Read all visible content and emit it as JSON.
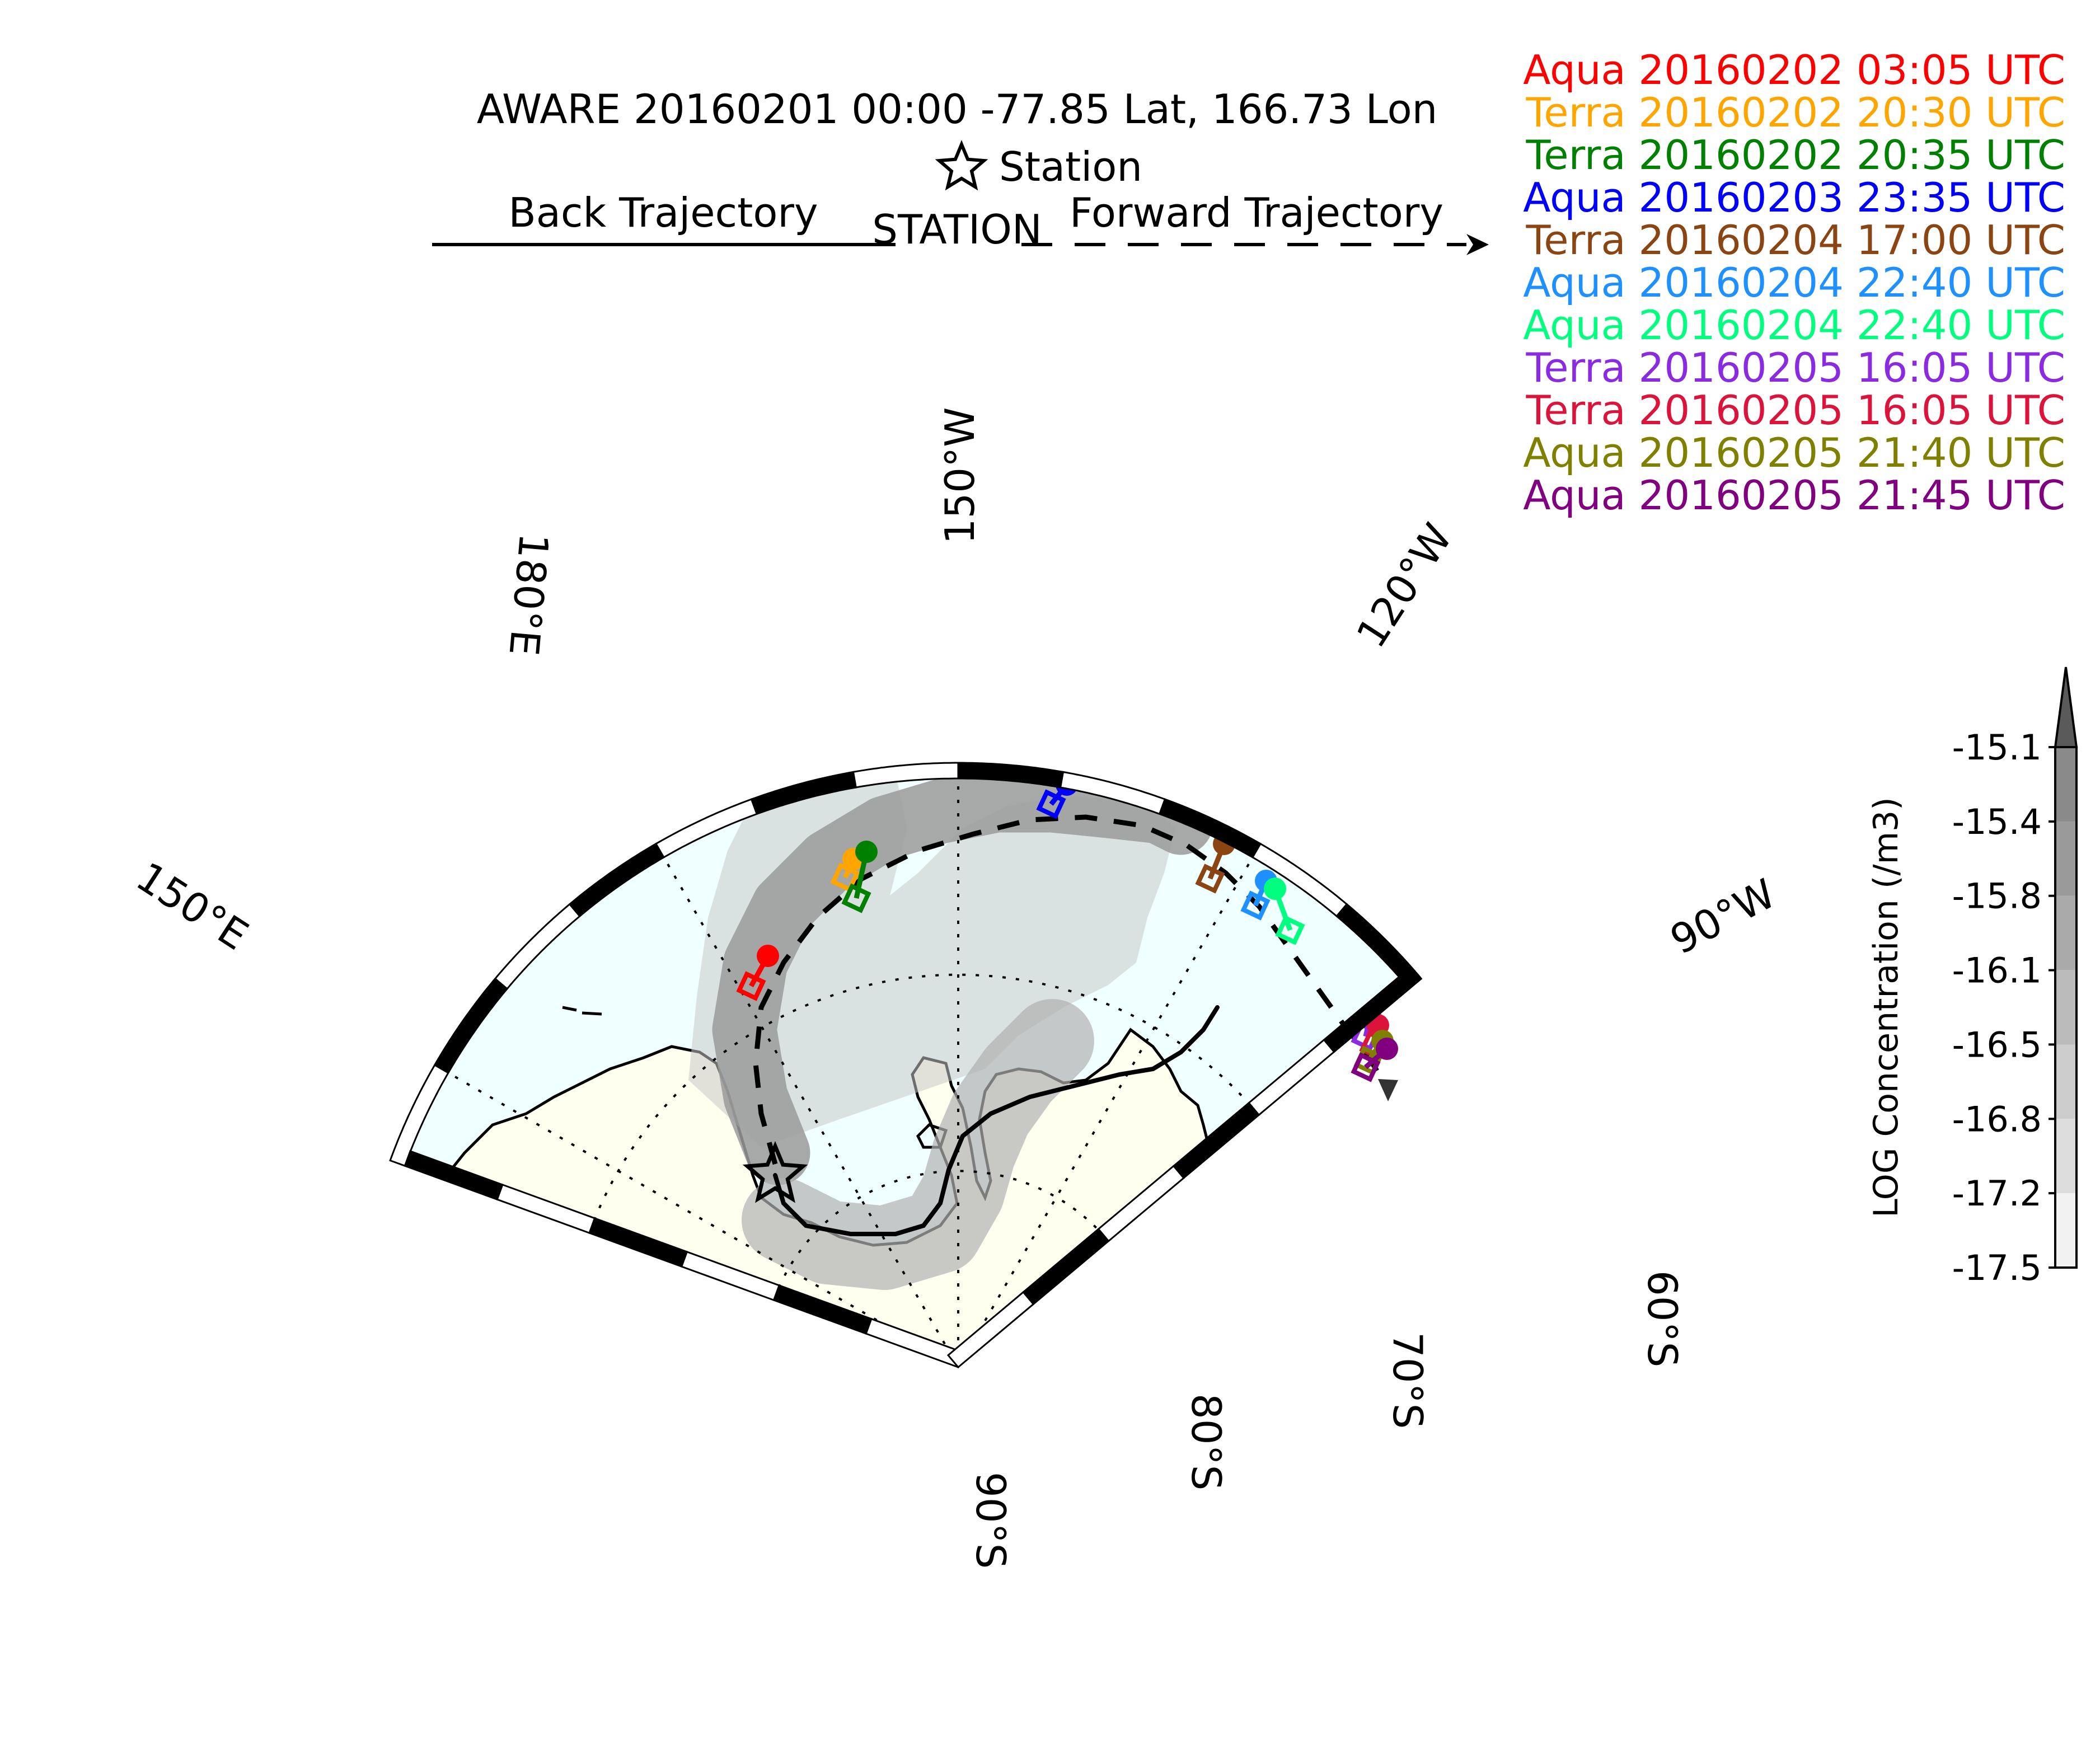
{
  "header": {
    "title": "AWARE 20160201 00:00  -77.85 Lat,  166.73 Lon",
    "station_legend": "Station",
    "back_label": "Back Trajectory",
    "station_label": "STATION",
    "forward_label": "Forward Trajectory"
  },
  "overpasses": [
    {
      "label": "Aqua 20160202 03:05 UTC",
      "color": "#ff0000"
    },
    {
      "label": "Terra 20160202 20:30 UTC",
      "color": "#ffa500"
    },
    {
      "label": "Terra 20160202 20:35 UTC",
      "color": "#008000"
    },
    {
      "label": "Aqua 20160203 23:35 UTC",
      "color": "#0000ff"
    },
    {
      "label": "Terra 20160204 17:00 UTC",
      "color": "#8b4513"
    },
    {
      "label": "Aqua 20160204 22:40 UTC",
      "color": "#1e90ff"
    },
    {
      "label": "Aqua 20160204 22:40 UTC",
      "color": "#00ff7f"
    },
    {
      "label": "Terra 20160205 16:05 UTC",
      "color": "#8a2be2"
    },
    {
      "label": "Terra 20160205 16:05 UTC",
      "color": "#dc143c"
    },
    {
      "label": "Aqua 20160205 21:40 UTC",
      "color": "#808000"
    },
    {
      "label": "Aqua 20160205 21:45 UTC",
      "color": "#800080"
    }
  ],
  "map": {
    "ocean_color": "#f0ffff",
    "land_color": "#fffff0",
    "lon_labels": [
      {
        "lon": 150,
        "text": "150°E"
      },
      {
        "lon": 180,
        "text": "180°E"
      },
      {
        "lon": -150,
        "text": "150°W"
      },
      {
        "lon": -120,
        "text": "120°W"
      },
      {
        "lon": -90,
        "text": "90°W"
      }
    ],
    "lat_labels": [
      {
        "lat": -90,
        "text": "90°S"
      },
      {
        "lat": -80,
        "text": "80°S"
      },
      {
        "lat": -70,
        "text": "70°S"
      },
      {
        "lat": -60,
        "text": "60°S"
      }
    ]
  },
  "colorbar": {
    "label": "LOG Concentration (/m3)",
    "ticks": [
      "-15.1",
      "-15.4",
      "-15.8",
      "-16.1",
      "-16.5",
      "-16.8",
      "-17.2",
      "-17.5"
    ]
  }
}
